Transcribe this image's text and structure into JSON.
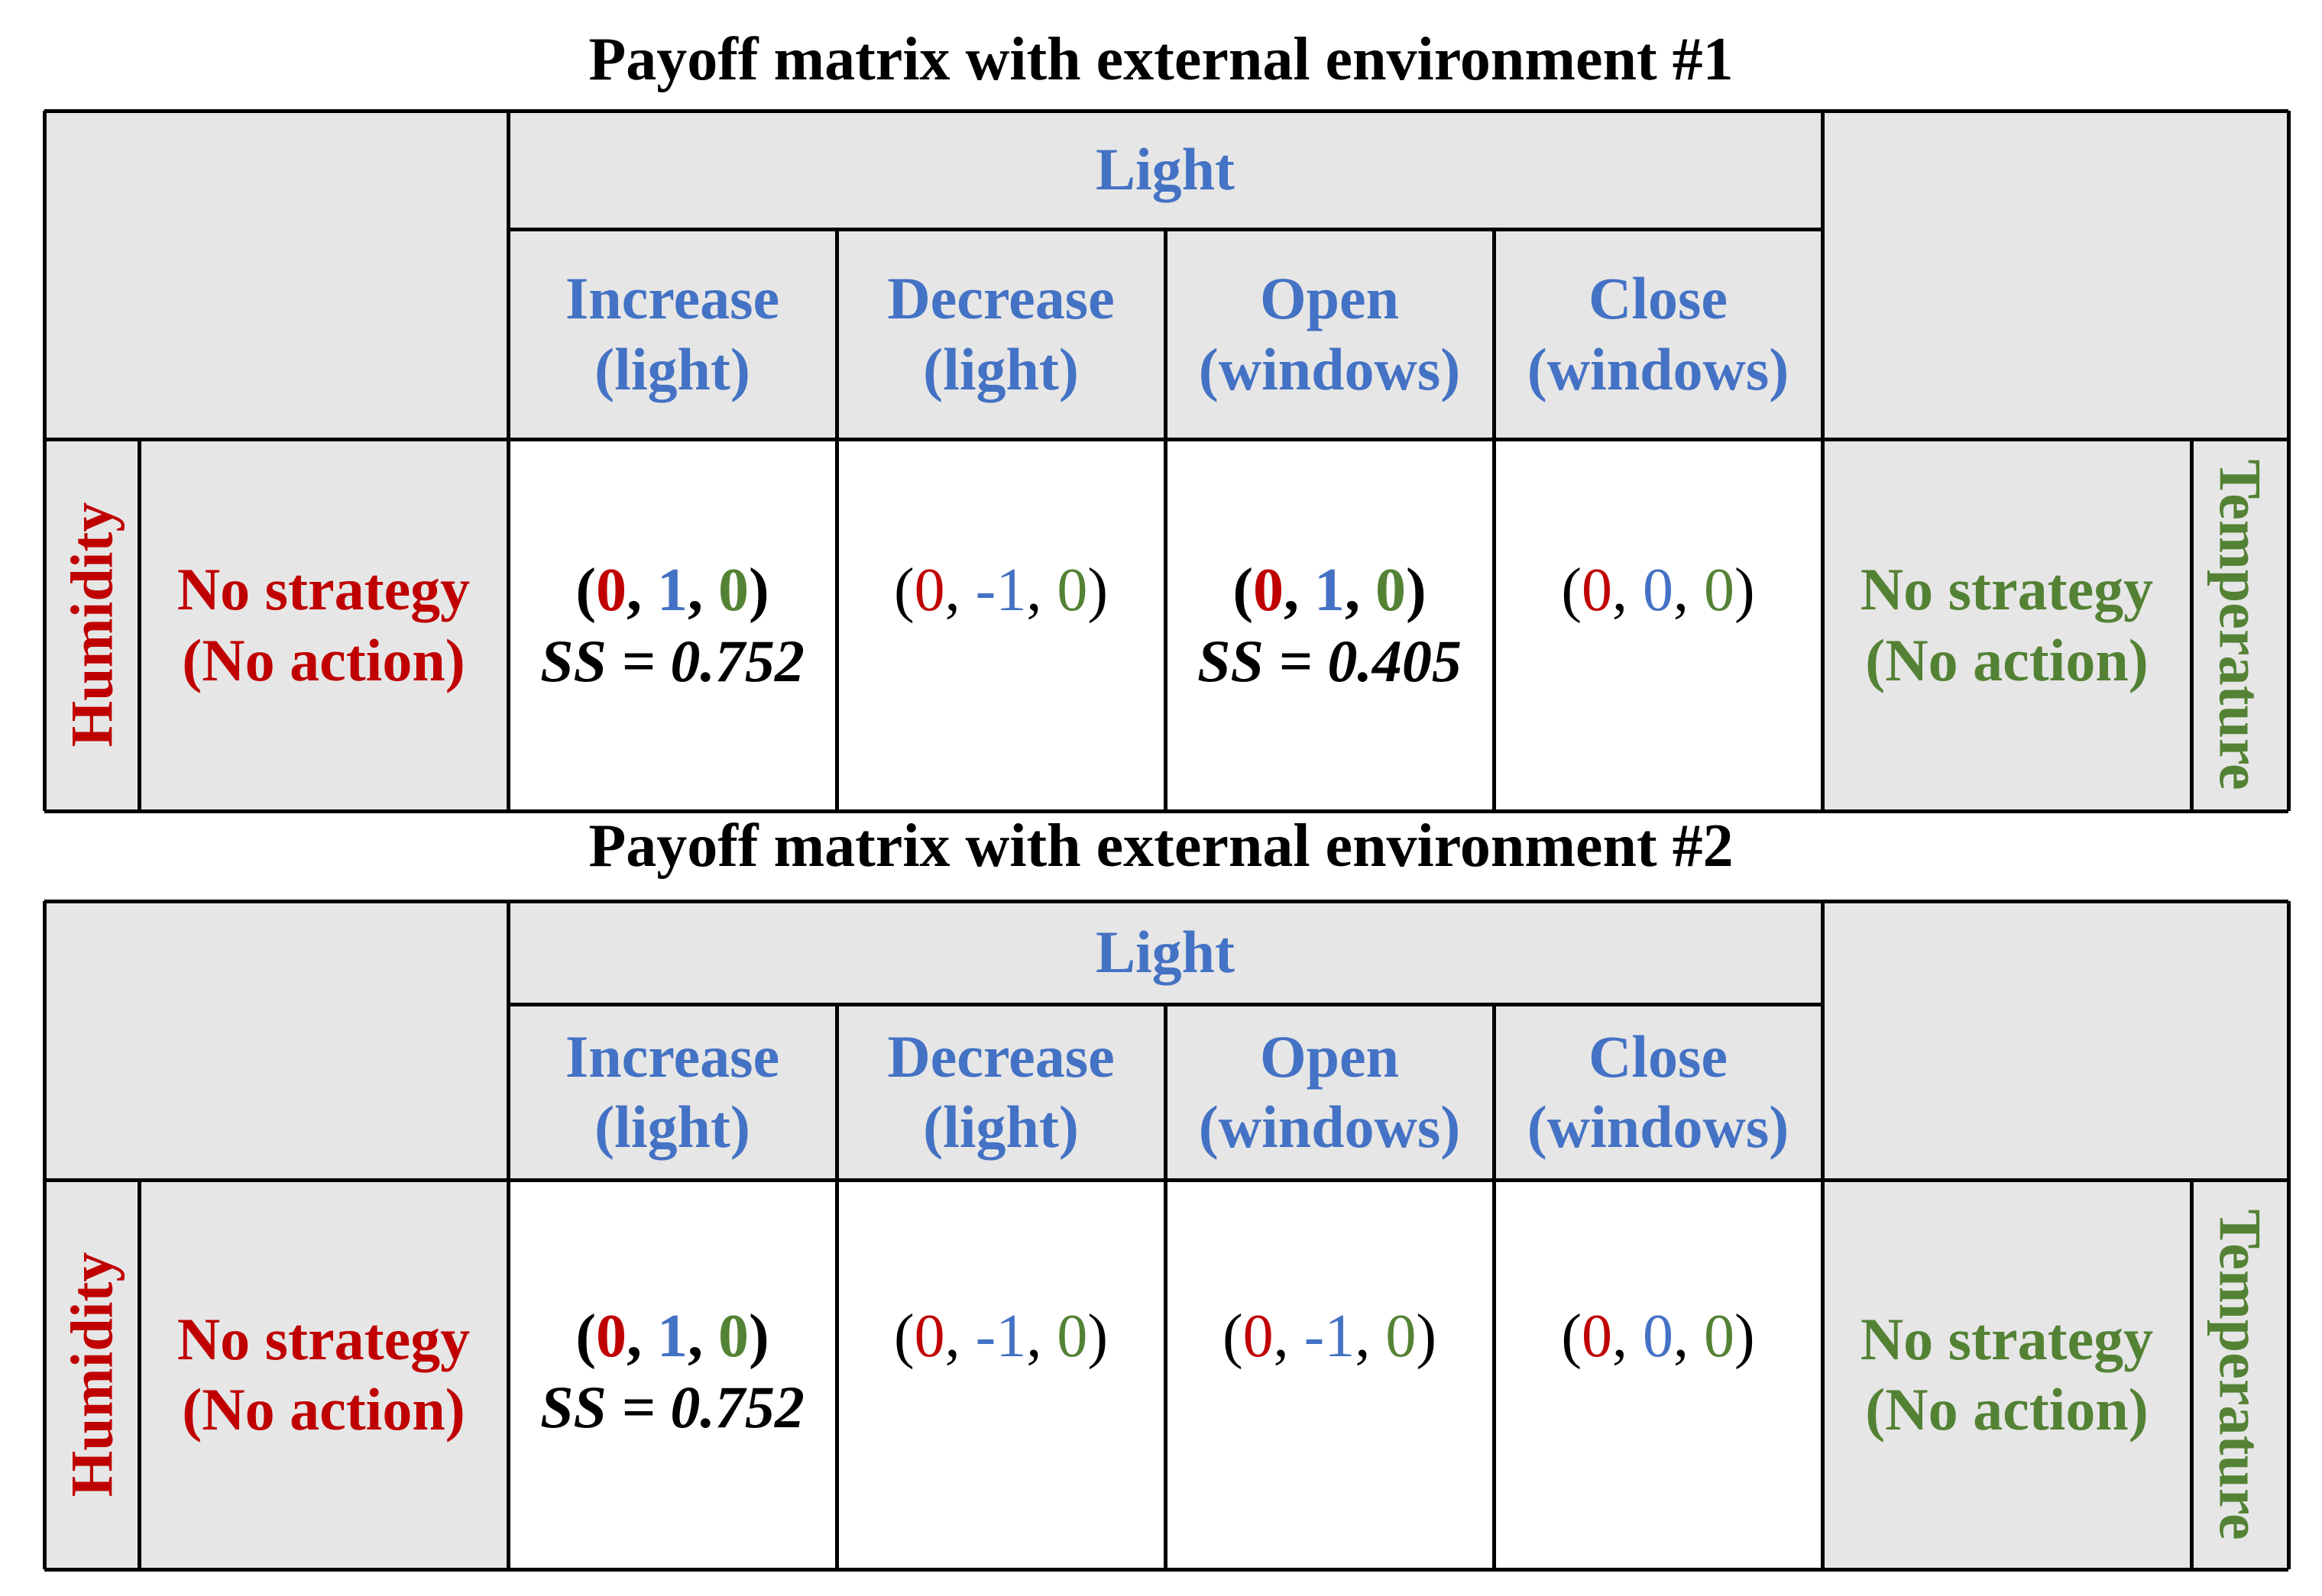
{
  "matrices": [
    {
      "title": "Payoff matrix with external environment #1",
      "column_player": "Light",
      "columns": [
        {
          "line1": "Increase",
          "line2": "(light)"
        },
        {
          "line1": "Decrease",
          "line2": "(light)"
        },
        {
          "line1": "Open",
          "line2": "(windows)"
        },
        {
          "line1": "Close",
          "line2": "(windows)"
        }
      ],
      "row_player_left": "Humidity",
      "row_label_left": {
        "line1": "No strategy",
        "line2": "(No action)"
      },
      "row_player_right": "Temperature",
      "row_label_right": {
        "line1": "No strategy",
        "line2": "(No action)"
      },
      "cells": [
        {
          "humidity": "0",
          "light": "1",
          "temperature": "0",
          "bold": true,
          "ss": "SS = 0.752"
        },
        {
          "humidity": "0",
          "light": "-1",
          "temperature": "0",
          "bold": false,
          "ss": ""
        },
        {
          "humidity": "0",
          "light": "1",
          "temperature": "0",
          "bold": true,
          "ss": "SS = 0.405"
        },
        {
          "humidity": "0",
          "light": "0",
          "temperature": "0",
          "bold": false,
          "ss": ""
        }
      ]
    },
    {
      "title": "Payoff matrix with external environment #2",
      "column_player": "Light",
      "columns": [
        {
          "line1": "Increase",
          "line2": "(light)"
        },
        {
          "line1": "Decrease",
          "line2": "(light)"
        },
        {
          "line1": "Open",
          "line2": "(windows)"
        },
        {
          "line1": "Close",
          "line2": "(windows)"
        }
      ],
      "row_player_left": "Humidity",
      "row_label_left": {
        "line1": "No strategy",
        "line2": "(No action)"
      },
      "row_player_right": "Temperature",
      "row_label_right": {
        "line1": "No strategy",
        "line2": "(No action)"
      },
      "cells": [
        {
          "humidity": "0",
          "light": "1",
          "temperature": "0",
          "bold": true,
          "ss": "SS = 0.752"
        },
        {
          "humidity": "0",
          "light": "-1",
          "temperature": "0",
          "bold": false,
          "ss": ""
        },
        {
          "humidity": "0",
          "light": "-1",
          "temperature": "0",
          "bold": false,
          "ss": ""
        },
        {
          "humidity": "0",
          "light": "0",
          "temperature": "0",
          "bold": false,
          "ss": ""
        }
      ]
    }
  ],
  "colors": {
    "humidity": "#c00000",
    "light": "#4472c4",
    "temperature": "#548235",
    "header_background": "#e6e6e6"
  }
}
